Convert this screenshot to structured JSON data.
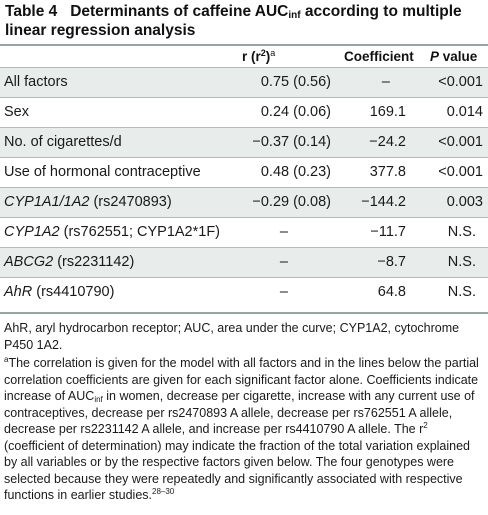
{
  "table": {
    "title_prefix": "Table 4",
    "title_main": "Determinants of caffeine AUC",
    "title_sub": "inf",
    "title_rest": " according to multiple linear regression analysis",
    "headers": {
      "r_base": "r (r",
      "r_sup": "2",
      "r_close": ")",
      "r_note": "a",
      "coefficient": "Coefficient",
      "p_italic": "P",
      "p_rest": " value"
    },
    "rows": [
      {
        "factor": "All factors",
        "factor_italic": "",
        "r": "0.75 (0.56)",
        "coef": "–",
        "p": "<0.001"
      },
      {
        "factor": "Sex",
        "factor_italic": "",
        "r": "0.24 (0.06)",
        "coef": "169.1",
        "p": "0.014"
      },
      {
        "factor": "No. of cigarettes/d",
        "factor_italic": "",
        "r": "−0.37 (0.14)",
        "coef": "−24.2",
        "p": "<0.001"
      },
      {
        "factor": "Use of hormonal contraceptive",
        "factor_italic": "",
        "r": "0.48 (0.23)",
        "coef": "377.8",
        "p": "<0.001"
      },
      {
        "factor": " (rs2470893)",
        "factor_italic": "CYP1A1/1A2",
        "r": "−0.29 (0.08)",
        "coef": "−144.2",
        "p": "0.003"
      },
      {
        "factor": " (rs762551; CYP1A2*1F)",
        "factor_italic": "CYP1A2",
        "r": "–",
        "coef": "−11.7",
        "p": "N.S."
      },
      {
        "factor": " (rs2231142)",
        "factor_italic": "ABCG2",
        "r": "–",
        "coef": "−8.7",
        "p": "N.S."
      },
      {
        "factor": " (rs4410790)",
        "factor_italic": "AhR",
        "r": "–",
        "coef": "64.8",
        "p": "N.S."
      }
    ]
  },
  "footnotes": {
    "abbrev": "AhR, aryl hydrocarbon receptor; AUC, area under the curve; CYP1A2, cytochrome P450 1A2.",
    "note_marker": "a",
    "note_part1": "The correlation is given for the model with all factors and in the lines below the partial correlation coefficients are given for each significant factor alone. Coefficients indicate increase of AUC",
    "note_sub": "inf",
    "note_part2": " in women, decrease per cigarette, increase with any current use of contraceptives, decrease per rs2470893 A allele, decrease per rs762551 A allele, decrease per rs2231142 A allele, and increase per rs4410790 A allele. The r",
    "note_sup": "2",
    "note_part3": " (coefficient of determination) may indicate the fraction of the total variation explained by all variables or by the respective factors given below. The four genotypes were selected because they were repeatedly and significantly associated with respective functions in earlier studies.",
    "note_refs": "28–30"
  }
}
